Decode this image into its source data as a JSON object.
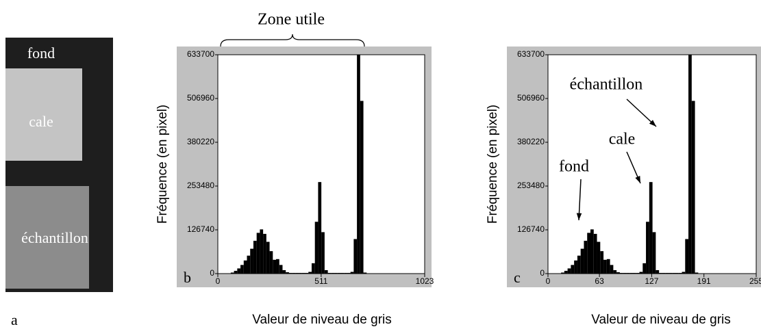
{
  "panel_a": {
    "letter": "a",
    "labels": [
      "fond",
      "cale",
      "échantillon"
    ]
  },
  "chart_data": [
    {
      "type": "histogram",
      "letter": "b",
      "x_label": "Valeur de niveau de gris",
      "y_label": "Fréquence (en pixel)",
      "annotations": [
        "Zone utile"
      ],
      "color": "#000000",
      "bins": [
        0,
        16,
        32,
        48,
        64,
        80,
        96,
        112,
        128,
        144,
        160,
        176,
        192,
        208,
        224,
        240,
        256,
        272,
        288,
        304,
        320,
        336,
        352,
        368,
        384,
        400,
        416,
        432,
        448,
        464,
        480,
        496,
        512,
        528,
        544,
        560,
        576,
        592,
        608,
        624,
        640,
        656,
        672,
        688,
        704,
        720,
        736,
        752,
        768,
        784,
        800,
        816,
        832,
        848,
        864,
        880,
        896,
        912,
        928,
        944,
        960,
        976,
        992,
        1008,
        1024
      ],
      "values": [
        0,
        0,
        0,
        0,
        3000,
        8000,
        15000,
        25000,
        38000,
        52000,
        72000,
        95000,
        118000,
        128000,
        115000,
        92000,
        65000,
        40000,
        42000,
        25000,
        10000,
        4000,
        2000,
        2000,
        2000,
        2000,
        2000,
        2000,
        5000,
        30000,
        150000,
        265000,
        120000,
        10000,
        2000,
        2000,
        2000,
        2000,
        2000,
        2000,
        2000,
        5000,
        100000,
        633700,
        500000,
        3000,
        0,
        0,
        0,
        0,
        0,
        0,
        0,
        0,
        0,
        0,
        0,
        0,
        0,
        0,
        0,
        0,
        0,
        0
      ],
      "xlim": [
        0,
        1023
      ],
      "xticks": [
        0,
        511,
        1023
      ],
      "ylim": [
        0,
        633700
      ],
      "yticks": [
        0,
        126740,
        253480,
        380220,
        506960,
        633700
      ]
    },
    {
      "type": "histogram",
      "letter": "c",
      "x_label": "Valeur de niveau de gris",
      "y_label": "Fréquence (en pixel)",
      "annotations": [
        "échantillon",
        "cale",
        "fond"
      ],
      "color": "#000000",
      "bins": [
        0,
        4,
        8,
        12,
        16,
        20,
        24,
        28,
        32,
        36,
        40,
        44,
        48,
        52,
        56,
        60,
        64,
        68,
        72,
        76,
        80,
        84,
        88,
        92,
        96,
        100,
        104,
        108,
        112,
        116,
        120,
        124,
        128,
        132,
        136,
        140,
        144,
        148,
        152,
        156,
        160,
        164,
        168,
        172,
        176,
        180,
        184,
        188,
        192,
        196,
        200,
        204,
        208,
        212,
        216,
        220,
        224,
        228,
        232,
        236,
        240,
        244,
        248,
        252,
        256
      ],
      "values": [
        0,
        0,
        0,
        0,
        3000,
        8000,
        15000,
        25000,
        38000,
        52000,
        72000,
        95000,
        118000,
        128000,
        115000,
        92000,
        65000,
        40000,
        42000,
        25000,
        10000,
        4000,
        2000,
        2000,
        2000,
        2000,
        2000,
        2000,
        5000,
        30000,
        150000,
        265000,
        120000,
        10000,
        2000,
        2000,
        2000,
        2000,
        2000,
        2000,
        2000,
        5000,
        100000,
        633700,
        500000,
        3000,
        0,
        0,
        0,
        0,
        0,
        0,
        0,
        0,
        0,
        0,
        0,
        0,
        0,
        0,
        0,
        0,
        0,
        0
      ],
      "xlim": [
        0,
        255
      ],
      "xticks": [
        0,
        63,
        127,
        191,
        255
      ],
      "ylim": [
        0,
        633700
      ],
      "yticks": [
        0,
        126740,
        253480,
        380220,
        506960,
        633700
      ]
    }
  ]
}
